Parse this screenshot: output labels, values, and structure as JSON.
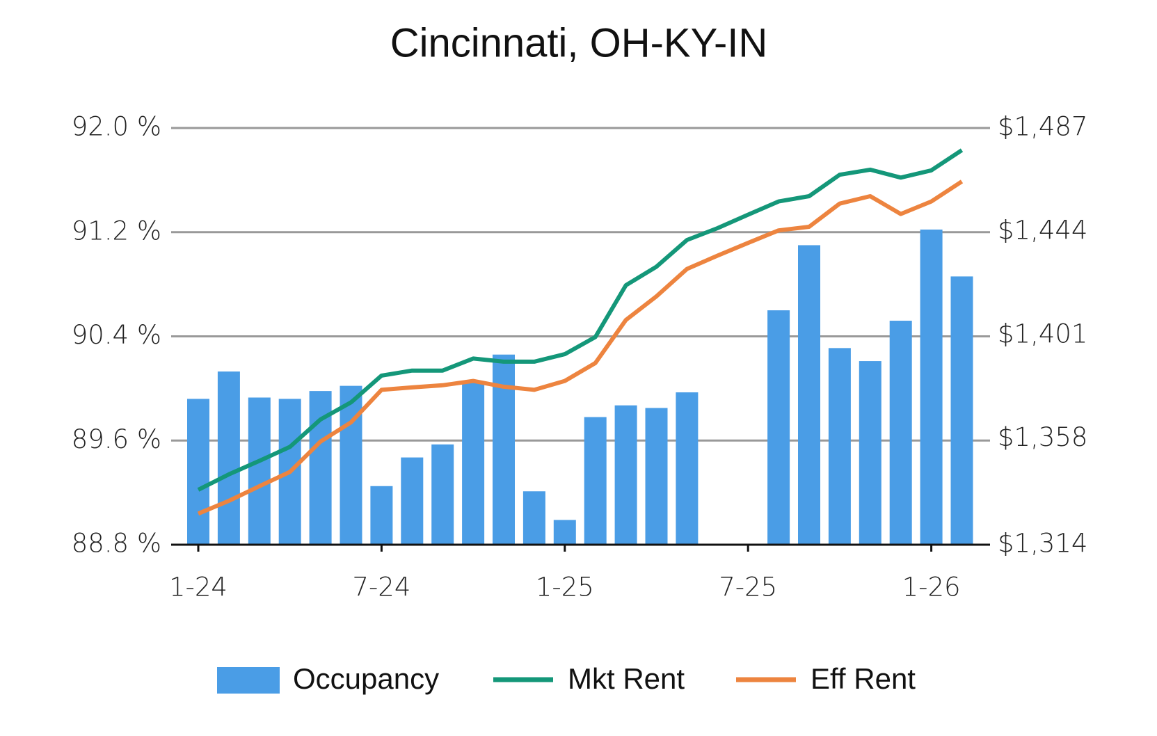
{
  "chart_data": {
    "type": "bar-line",
    "title": "Cincinnati, OH-KY-IN",
    "categories": [
      "1-24",
      null,
      null,
      null,
      null,
      null,
      "7-24",
      null,
      null,
      null,
      null,
      null,
      "1-25",
      null,
      null,
      null,
      null,
      null,
      "7-25",
      null,
      null,
      null,
      null,
      null,
      "1-26",
      null
    ],
    "series": [
      {
        "name": "Occupancy",
        "type": "bar",
        "color": "#4a9de6",
        "values": [
          89.92,
          90.13,
          89.93,
          89.92,
          89.98,
          90.02,
          89.25,
          89.47,
          89.57,
          90.05,
          90.26,
          89.21,
          88.99,
          89.78,
          89.87,
          89.85,
          89.97,
          null,
          null,
          90.6,
          91.1,
          90.31,
          90.21,
          90.52,
          91.22,
          90.86
        ]
      },
      {
        "name": "Mkt Rent",
        "type": "line",
        "axis": "y2",
        "color": "#149779",
        "values": [
          1336.8,
          1343.2,
          1348.8,
          1354.6,
          1366.0,
          1373.1,
          1384.2,
          1386.3,
          1386.3,
          1391.3,
          1390.0,
          1390.0,
          1393.1,
          1400.2,
          1421.7,
          1429.4,
          1440.5,
          1445.4,
          1451.0,
          1456.5,
          1458.7,
          1467.6,
          1469.7,
          1466.4,
          1469.4,
          1477.8
        ]
      },
      {
        "name": "Eff Rent",
        "type": "line",
        "axis": "y2",
        "color": "#ed843f",
        "values": [
          1326.9,
          1332.2,
          1338.3,
          1344.2,
          1356.8,
          1364.8,
          1378.3,
          1379.3,
          1380.2,
          1382.0,
          1379.6,
          1378.3,
          1382.0,
          1389.4,
          1407.3,
          1417.1,
          1428.5,
          1434.0,
          1439.3,
          1444.5,
          1446.0,
          1455.6,
          1458.7,
          1451.3,
          1456.5,
          1464.8
        ]
      }
    ],
    "ylim": [
      88.8,
      92.0
    ],
    "yticks": [
      {
        "value": 88.8,
        "label": "88.8 %"
      },
      {
        "value": 89.6,
        "label": "89.6 %"
      },
      {
        "value": 90.4,
        "label": "90.4 %"
      },
      {
        "value": 91.2,
        "label": "91.2 %"
      },
      {
        "value": 92.0,
        "label": "92.0 %"
      }
    ],
    "y2lim": [
      1314,
      1487
    ],
    "y2ticks": [
      {
        "value": 1314,
        "label": "$1,314"
      },
      {
        "value": 1358,
        "label": "$1,358"
      },
      {
        "value": 1401,
        "label": "$1,401"
      },
      {
        "value": 1444,
        "label": "$1,444"
      },
      {
        "value": 1487,
        "label": "$1,487"
      }
    ],
    "grid": true,
    "legend": "bottom"
  }
}
